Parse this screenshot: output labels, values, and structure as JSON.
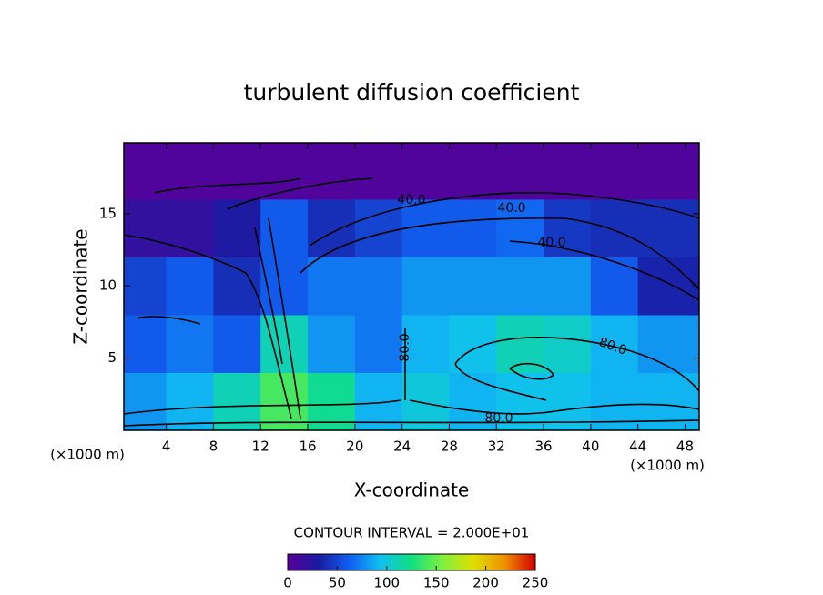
{
  "chart_data": {
    "type": "contour",
    "title": "turbulent diffusion coefficient",
    "xlabel": "X-coordinate",
    "ylabel": "Z-coordinate",
    "x_unit": "(×1000 m)",
    "contour_interval": "CONTOUR INTERVAL = 2.000E+01",
    "x": [
      2,
      6,
      10,
      14,
      18,
      22,
      26,
      30,
      34,
      38,
      42,
      46
    ],
    "y": [
      2,
      6,
      10,
      14,
      18
    ],
    "z": [
      [
        80,
        90,
        110,
        140,
        120,
        90,
        100,
        90,
        95,
        95,
        90,
        90
      ],
      [
        60,
        70,
        60,
        110,
        80,
        70,
        90,
        95,
        110,
        105,
        90,
        80
      ],
      [
        50,
        60,
        40,
        60,
        70,
        70,
        80,
        80,
        80,
        80,
        60,
        35
      ],
      [
        20,
        20,
        30,
        60,
        40,
        50,
        60,
        60,
        65,
        45,
        40,
        40
      ],
      [
        5,
        5,
        5,
        5,
        5,
        5,
        5,
        5,
        5,
        5,
        5,
        5
      ]
    ],
    "xlim": [
      0.4,
      49.2
    ],
    "ylim": [
      0,
      19.9
    ],
    "xticks": [
      4,
      8,
      12,
      16,
      20,
      24,
      28,
      32,
      36,
      40,
      44,
      48
    ],
    "yticks": [
      5,
      10,
      15
    ],
    "contour_labels": [
      "40.0",
      "40.0",
      "40.0",
      "80.0",
      "80.0",
      "80.0"
    ],
    "colorbar": {
      "lim": [
        0,
        250
      ],
      "ticks": [
        0,
        50,
        100,
        150,
        200,
        250
      ],
      "colors": [
        "#5a009a",
        "#1a1aa0",
        "#1060f0",
        "#10c0f0",
        "#10e080",
        "#80f040",
        "#e0e000",
        "#f09000",
        "#d00000"
      ]
    }
  }
}
